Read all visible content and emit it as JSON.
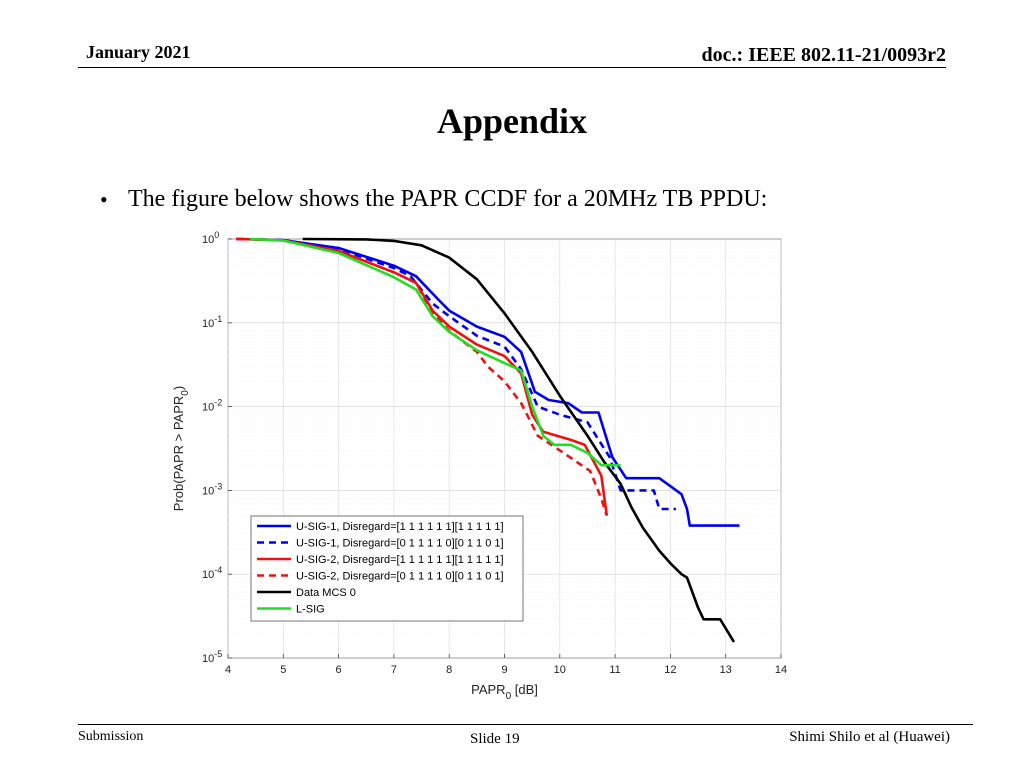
{
  "header": {
    "date": "January 2021",
    "doc": "doc.: IEEE 802.11-21/0093r2"
  },
  "slide_title": "Appendix",
  "bullet": "The figure below shows the PAPR CCDF for a 20MHz TB PPDU:",
  "footer": {
    "left": "Submission",
    "center": "Slide 19",
    "right": "Shimi Shilo et al (Huawei)"
  },
  "chart_data": {
    "type": "line",
    "title": "",
    "xlabel": "PAPR",
    "xlabel_subscript": "0",
    "xlabel_unit": " [dB]",
    "ylabel": "Prob(PAPR > PAPR",
    "ylabel_subscript": "0",
    "ylabel_close": ")",
    "xlim": [
      4,
      14
    ],
    "ylim": [
      1e-05,
      1
    ],
    "yscale": "log",
    "grid": true,
    "legend_position": "bottom-left",
    "xticks": [
      "4",
      "5",
      "6",
      "7",
      "8",
      "9",
      "10",
      "11",
      "12",
      "13",
      "14"
    ],
    "yticks": [
      {
        "base": "10",
        "exp": "0"
      },
      {
        "base": "10",
        "exp": "-1"
      },
      {
        "base": "10",
        "exp": "-2"
      },
      {
        "base": "10",
        "exp": "-3"
      },
      {
        "base": "10",
        "exp": "-4"
      },
      {
        "base": "10",
        "exp": "-5"
      }
    ],
    "series": [
      {
        "name": "U-SIG-1, Disregard=[1 1 1 1 1 1][1 1 1 1 1]",
        "color": "#0000ee",
        "style": "solid",
        "points": [
          [
            4.15,
            1
          ],
          [
            4.5,
            0.99
          ],
          [
            5,
            0.97
          ],
          [
            6,
            0.78
          ],
          [
            7,
            0.48
          ],
          [
            7.4,
            0.36
          ],
          [
            7.8,
            0.19
          ],
          [
            8,
            0.14
          ],
          [
            8.5,
            0.09
          ],
          [
            9,
            0.068
          ],
          [
            9.3,
            0.045
          ],
          [
            9.55,
            0.015
          ],
          [
            9.8,
            0.012
          ],
          [
            10.15,
            0.011
          ],
          [
            10.4,
            0.0085
          ],
          [
            10.7,
            0.0085
          ],
          [
            10.95,
            0.0025
          ],
          [
            11.2,
            0.0014
          ],
          [
            11.5,
            0.0014
          ],
          [
            11.8,
            0.0014
          ],
          [
            12.2,
            0.0009
          ],
          [
            12.3,
            0.0006
          ],
          [
            12.35,
            0.00038
          ],
          [
            13.25,
            0.00038
          ]
        ]
      },
      {
        "name": "U-SIG-1, Disregard=[0 1 1 1 1 0][0 1 1 0 1]",
        "color": "#0000ee",
        "style": "dashed",
        "points": [
          [
            4.15,
            1
          ],
          [
            4.5,
            0.99
          ],
          [
            5,
            0.97
          ],
          [
            6,
            0.76
          ],
          [
            7,
            0.45
          ],
          [
            7.3,
            0.36
          ],
          [
            7.7,
            0.17
          ],
          [
            8,
            0.12
          ],
          [
            8.5,
            0.07
          ],
          [
            9,
            0.052
          ],
          [
            9.3,
            0.028
          ],
          [
            9.6,
            0.01
          ],
          [
            10,
            0.008
          ],
          [
            10.5,
            0.0065
          ],
          [
            10.9,
            0.0025
          ],
          [
            11.1,
            0.001
          ],
          [
            11.5,
            0.001
          ],
          [
            11.7,
            0.001
          ],
          [
            11.8,
            0.0006
          ],
          [
            12.1,
            0.0006
          ]
        ]
      },
      {
        "name": "U-SIG-2, Disregard=[1 1 1 1 1 1][1 1 1 1 1]",
        "color": "#ee1111",
        "style": "solid",
        "points": [
          [
            4.15,
            1
          ],
          [
            4.5,
            0.99
          ],
          [
            5,
            0.96
          ],
          [
            6,
            0.72
          ],
          [
            7,
            0.4
          ],
          [
            7.4,
            0.3
          ],
          [
            7.7,
            0.14
          ],
          [
            8,
            0.09
          ],
          [
            8.5,
            0.055
          ],
          [
            9,
            0.04
          ],
          [
            9.3,
            0.025
          ],
          [
            9.5,
            0.008
          ],
          [
            9.7,
            0.005
          ],
          [
            10.2,
            0.004
          ],
          [
            10.45,
            0.0035
          ],
          [
            10.75,
            0.0015
          ],
          [
            10.85,
            0.0005
          ]
        ]
      },
      {
        "name": "U-SIG-2, Disregard=[0 1 1 1 1 0][0 1 1 0 1]",
        "color": "#ee1111",
        "style": "dashed",
        "points": [
          [
            4.15,
            1
          ],
          [
            4.5,
            0.99
          ],
          [
            5,
            0.96
          ],
          [
            6,
            0.72
          ],
          [
            7,
            0.4
          ],
          [
            7.4,
            0.3
          ],
          [
            7.7,
            0.13
          ],
          [
            8,
            0.08
          ],
          [
            8.5,
            0.045
          ],
          [
            8.7,
            0.03
          ],
          [
            9,
            0.02
          ],
          [
            9.3,
            0.011
          ],
          [
            9.6,
            0.0045
          ],
          [
            10,
            0.003
          ],
          [
            10.3,
            0.0022
          ],
          [
            10.55,
            0.0017
          ],
          [
            10.75,
            0.0008
          ],
          [
            10.85,
            0.0005
          ]
        ]
      },
      {
        "name": "Data MCS 0",
        "color": "#000000",
        "style": "solid",
        "points": [
          [
            5.35,
            1
          ],
          [
            6.5,
            0.99
          ],
          [
            7,
            0.95
          ],
          [
            7.5,
            0.84
          ],
          [
            8,
            0.6
          ],
          [
            8.5,
            0.33
          ],
          [
            9,
            0.13
          ],
          [
            9.5,
            0.045
          ],
          [
            10,
            0.0135
          ],
          [
            10.5,
            0.0045
          ],
          [
            10.8,
            0.0022
          ],
          [
            11.1,
            0.0012
          ],
          [
            11.3,
            0.00062
          ],
          [
            11.5,
            0.00036
          ],
          [
            11.8,
            0.00019
          ],
          [
            12,
            0.000135
          ],
          [
            12.2,
            0.0001
          ],
          [
            12.3,
            9.1e-05
          ],
          [
            12.5,
            4e-05
          ],
          [
            12.6,
            2.9e-05
          ],
          [
            12.9,
            2.9e-05
          ],
          [
            13.15,
            1.55e-05
          ]
        ]
      },
      {
        "name": "L-SIG",
        "color": "#22dd22",
        "style": "solid",
        "points": [
          [
            4.4,
            1
          ],
          [
            5,
            0.96
          ],
          [
            6,
            0.68
          ],
          [
            7,
            0.35
          ],
          [
            7.4,
            0.25
          ],
          [
            7.7,
            0.12
          ],
          [
            8,
            0.078
          ],
          [
            8.5,
            0.047
          ],
          [
            9,
            0.033
          ],
          [
            9.3,
            0.027
          ],
          [
            9.5,
            0.01
          ],
          [
            9.7,
            0.0045
          ],
          [
            9.9,
            0.0035
          ],
          [
            10.2,
            0.0035
          ],
          [
            10.5,
            0.0028
          ],
          [
            10.75,
            0.002
          ],
          [
            11.1,
            0.002
          ]
        ]
      }
    ]
  }
}
